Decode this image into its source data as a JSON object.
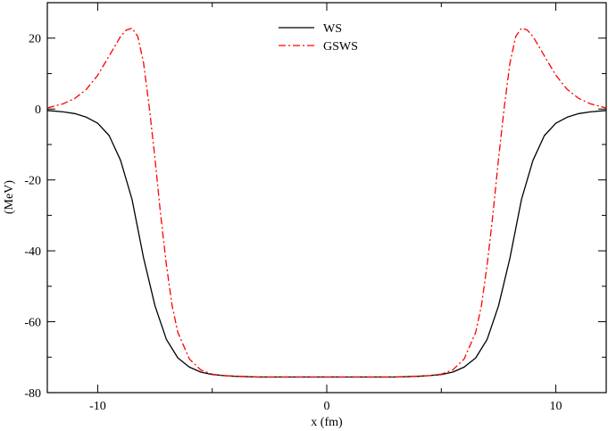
{
  "chart_data": {
    "type": "line",
    "title": "",
    "xlabel": "x (fm)",
    "ylabel": "(MeV)",
    "xlim": [
      -12.2,
      12.2
    ],
    "ylim": [
      -80,
      30
    ],
    "xticks": [
      -10,
      0,
      10
    ],
    "xtick_labels": [
      "-10",
      "0",
      "10"
    ],
    "yticks": [
      -80,
      -60,
      -40,
      -20,
      0,
      20
    ],
    "ytick_labels": [
      "-80",
      "-60",
      "-40",
      "-20",
      "0",
      "20"
    ],
    "grid": false,
    "legend_position": "top-center",
    "series": [
      {
        "name": "WS",
        "color": "#000000",
        "style": "solid",
        "x": [
          -12.2,
          -11.5,
          -11,
          -10.5,
          -10,
          -9.5,
          -9,
          -8.5,
          -8,
          -7.5,
          -7,
          -6.5,
          -6,
          -5.5,
          -5,
          -4.5,
          -4,
          -3,
          -2,
          -1,
          0,
          1,
          2,
          3,
          4,
          4.5,
          5,
          5.5,
          6,
          6.5,
          7,
          7.5,
          8,
          8.5,
          9,
          9.5,
          10,
          10.5,
          11,
          11.5,
          12.2
        ],
        "y": [
          -0.4,
          -0.8,
          -1.3,
          -2.3,
          -4.0,
          -7.5,
          -14.5,
          -25.5,
          -42.0,
          -55.5,
          -65.0,
          -70.2,
          -72.8,
          -74.2,
          -74.9,
          -75.2,
          -75.4,
          -75.6,
          -75.6,
          -75.6,
          -75.6,
          -75.6,
          -75.6,
          -75.6,
          -75.4,
          -75.2,
          -74.9,
          -74.2,
          -72.8,
          -70.2,
          -65.0,
          -55.5,
          -42.0,
          -25.5,
          -14.5,
          -7.5,
          -4.0,
          -2.3,
          -1.3,
          -0.8,
          -0.4
        ]
      },
      {
        "name": "GSWS",
        "color": "#ff0000",
        "style": "dash-dot",
        "x": [
          -12.2,
          -11.5,
          -11,
          -10.5,
          -10,
          -9.5,
          -9,
          -8.75,
          -8.5,
          -8.25,
          -8,
          -7.75,
          -7.5,
          -7.25,
          -7,
          -6.75,
          -6.5,
          -6,
          -5.5,
          -5,
          -4.5,
          -4,
          -3,
          -2,
          -1,
          0,
          1,
          2,
          3,
          4,
          4.5,
          5,
          5.5,
          6,
          6.5,
          6.75,
          7,
          7.25,
          7.5,
          7.75,
          8,
          8.25,
          8.5,
          8.75,
          9,
          9.5,
          10,
          10.5,
          11,
          11.5,
          12.2
        ],
        "y": [
          0.3,
          1.5,
          3.0,
          5.5,
          9.5,
          15.0,
          20.5,
          22.3,
          22.8,
          20.5,
          13.0,
          0.5,
          -14.0,
          -30.0,
          -44.0,
          -55.5,
          -63.0,
          -70.5,
          -73.6,
          -74.8,
          -75.2,
          -75.4,
          -75.6,
          -75.6,
          -75.6,
          -75.6,
          -75.6,
          -75.6,
          -75.6,
          -75.4,
          -75.2,
          -74.8,
          -73.6,
          -70.5,
          -63.0,
          -55.5,
          -44.0,
          -30.0,
          -14.0,
          0.5,
          13.0,
          20.5,
          22.8,
          22.3,
          20.5,
          15.0,
          9.5,
          5.5,
          3.0,
          1.5,
          0.3
        ]
      }
    ]
  }
}
